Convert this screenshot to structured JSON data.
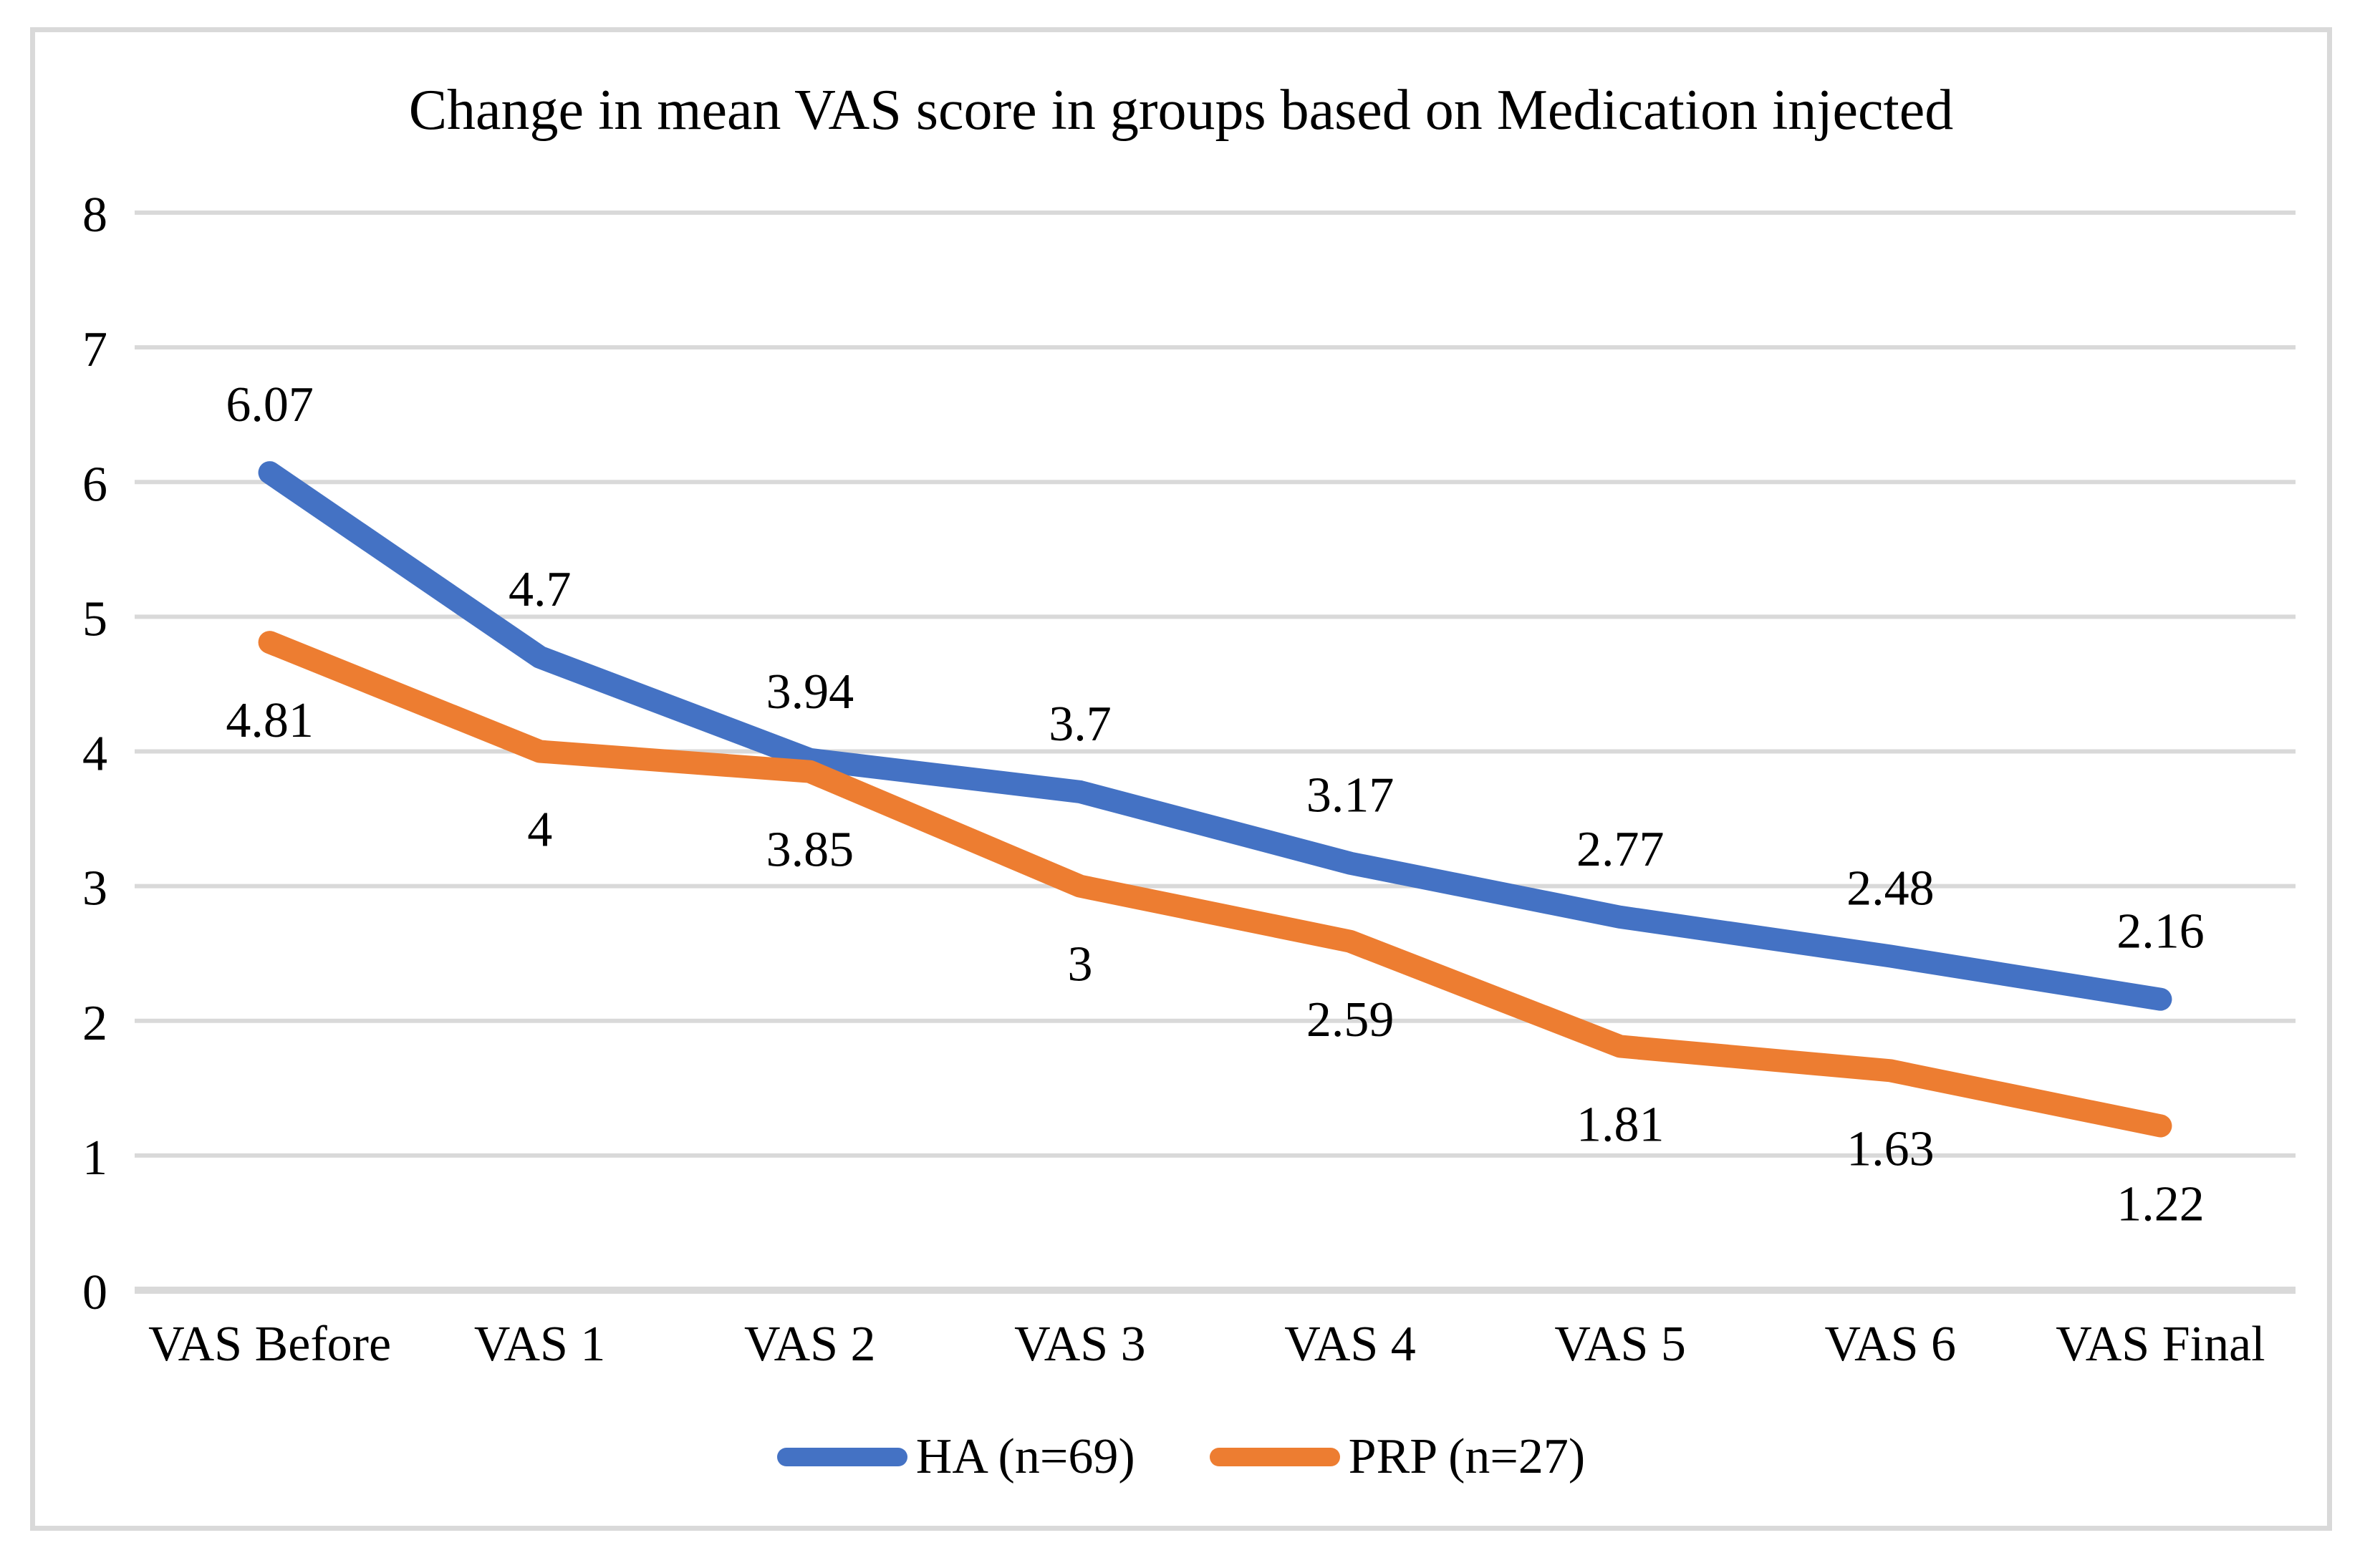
{
  "chart_data": {
    "type": "line",
    "title": "Change in mean VAS score in groups based on Medication injected",
    "categories": [
      "VAS Before",
      "VAS 1",
      "VAS 2",
      "VAS 3",
      "VAS 4",
      "VAS 5",
      "VAS 6",
      "VAS Final"
    ],
    "series": [
      {
        "name": "HA (n=69)",
        "color": "#4472C4",
        "values": [
          6.07,
          4.7,
          3.94,
          3.7,
          3.17,
          2.77,
          2.48,
          2.16
        ],
        "labels": [
          "6.07",
          "4.7",
          "3.94",
          "3.7",
          "3.17",
          "2.77",
          "2.48",
          "2.16"
        ],
        "label_position": "above"
      },
      {
        "name": "PRP (n=27)",
        "color": "#ED7D31",
        "values": [
          4.81,
          4,
          3.85,
          3,
          2.59,
          1.81,
          1.63,
          1.22
        ],
        "labels": [
          "4.81",
          "4",
          "3.85",
          "3",
          "2.59",
          "1.81",
          "1.63",
          "1.22"
        ],
        "label_position": "below"
      }
    ],
    "y_axis": {
      "min": 0,
      "max": 8,
      "step": 1,
      "tick_labels": [
        "0",
        "1",
        "2",
        "3",
        "4",
        "5",
        "6",
        "7",
        "8"
      ]
    },
    "x_axis": {
      "label_color": "#000000"
    },
    "grid": true,
    "grid_color": "#D9D9D9",
    "axis_line_color": "#D9D9D9",
    "legend_position": "bottom",
    "text_color": "#000000"
  }
}
